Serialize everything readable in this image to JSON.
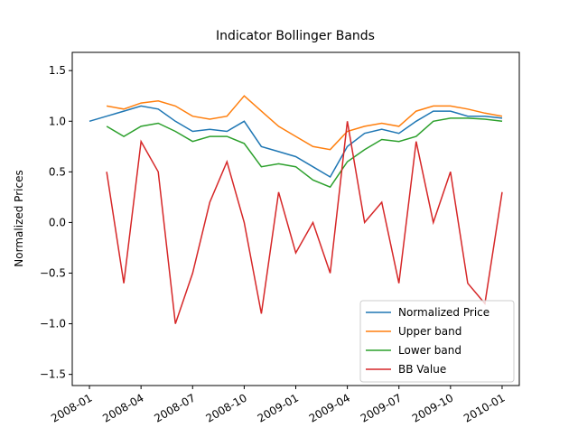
{
  "chart_data": {
    "type": "line",
    "title": "Indicator Bollinger Bands",
    "y_label": "Normalized Prices",
    "x": [
      "2008-01",
      "2008-02",
      "2008-03",
      "2008-04",
      "2008-05",
      "2008-06",
      "2008-07",
      "2008-08",
      "2008-09",
      "2008-10",
      "2008-11",
      "2008-12",
      "2009-01",
      "2009-02",
      "2009-03",
      "2009-04",
      "2009-05",
      "2009-06",
      "2009-07",
      "2009-08",
      "2009-09",
      "2009-10",
      "2009-11",
      "2009-12",
      "2010-01"
    ],
    "series": [
      {
        "name": "Normalized Price",
        "color": "#1f77b4",
        "values": [
          1.0,
          1.05,
          1.1,
          1.15,
          1.12,
          1.0,
          0.9,
          0.92,
          0.9,
          1.0,
          0.75,
          0.7,
          0.65,
          0.55,
          0.45,
          0.75,
          0.88,
          0.92,
          0.88,
          1.0,
          1.1,
          1.1,
          1.05,
          1.05,
          1.03
        ]
      },
      {
        "name": "Upper band",
        "color": "#ff7f0e",
        "values": [
          null,
          1.15,
          1.12,
          1.18,
          1.2,
          1.15,
          1.05,
          1.02,
          1.05,
          1.25,
          1.1,
          0.95,
          0.85,
          0.75,
          0.72,
          0.9,
          0.95,
          0.98,
          0.95,
          1.1,
          1.15,
          1.15,
          1.12,
          1.08,
          1.05
        ]
      },
      {
        "name": "Lower band",
        "color": "#2ca02c",
        "values": [
          null,
          0.95,
          0.85,
          0.95,
          0.98,
          0.9,
          0.8,
          0.85,
          0.85,
          0.78,
          0.55,
          0.58,
          0.55,
          0.42,
          0.35,
          0.6,
          0.72,
          0.82,
          0.8,
          0.85,
          1.0,
          1.03,
          1.03,
          1.02,
          1.0
        ]
      },
      {
        "name": "BB Value",
        "color": "#d62728",
        "values": [
          null,
          0.5,
          -0.6,
          0.8,
          0.5,
          -1.0,
          -0.5,
          0.2,
          0.6,
          0.0,
          -0.9,
          0.3,
          -0.3,
          0.0,
          -0.5,
          1.0,
          0.0,
          0.2,
          -0.6,
          0.8,
          0.0,
          0.5,
          -0.6,
          -0.8,
          0.3
        ]
      }
    ],
    "xlim": [
      "2007-12",
      "2010-02"
    ],
    "xticks": [
      "2008-01",
      "2008-04",
      "2008-07",
      "2008-10",
      "2009-01",
      "2009-04",
      "2009-07",
      "2009-10",
      "2010-01"
    ],
    "ylim": [
      -1.61,
      1.68
    ],
    "yticks": [
      {
        "value": -1.5,
        "label": "−1.5"
      },
      {
        "value": -1,
        "label": "−1.0"
      },
      {
        "value": -0.5,
        "label": "−0.5"
      },
      {
        "value": 0,
        "label": "0.0"
      },
      0.5,
      {
        "value": 1,
        "label": "1.0"
      },
      1.5
    ],
    "legend": "lower right",
    "grid": false
  }
}
